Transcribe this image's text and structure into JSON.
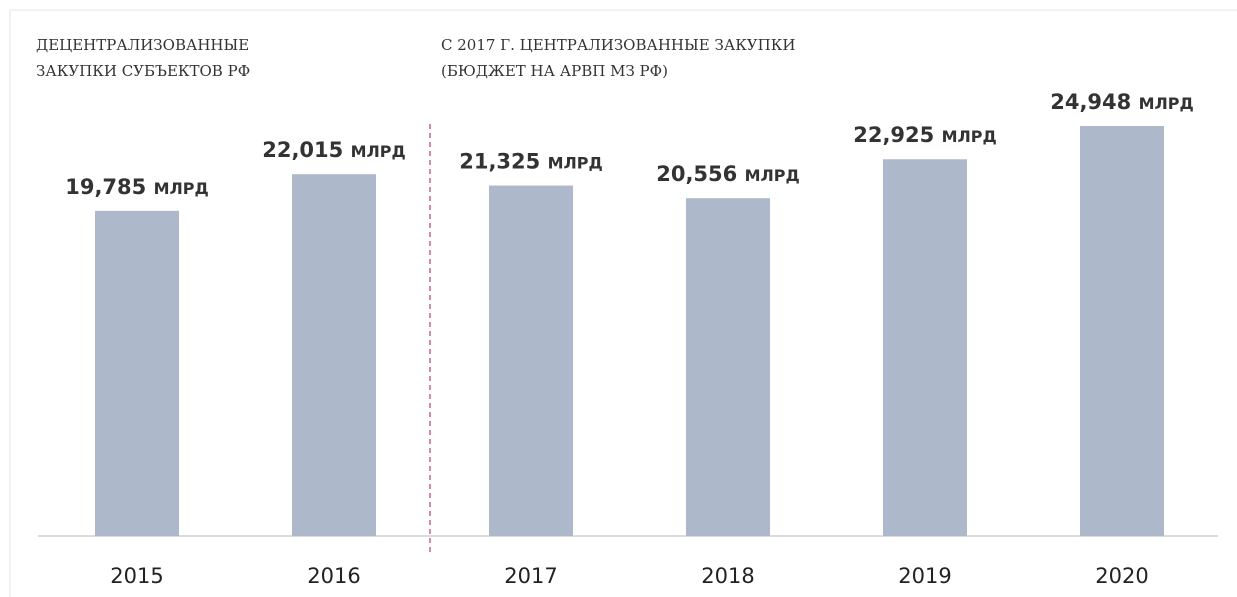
{
  "chart_data": {
    "type": "bar",
    "categories": [
      "2015",
      "2016",
      "2017",
      "2018",
      "2019",
      "2020"
    ],
    "values": [
      19.785,
      22.015,
      21.325,
      20.556,
      22.925,
      24.948
    ],
    "value_labels": [
      "19,785 млрд",
      "22,015 млрд",
      "21,325 млрд",
      "20,556 млрд",
      "22,925 млрд",
      "24,948 млрд"
    ],
    "color": "#adb9ca",
    "annotations": [
      {
        "lines": [
          "ДЕЦЕНТРАЛИЗОВАННЫЕ",
          "ЗАКУПКИ СУБЪЕКТОВ РФ"
        ]
      },
      {
        "lines": [
          "С 2017 Г. ЦЕНТРАЛИЗОВАННЫЕ ЗАКУПКИ",
          "(БЮДЖЕТ НА АРВП МЗ РФ)"
        ]
      }
    ]
  }
}
